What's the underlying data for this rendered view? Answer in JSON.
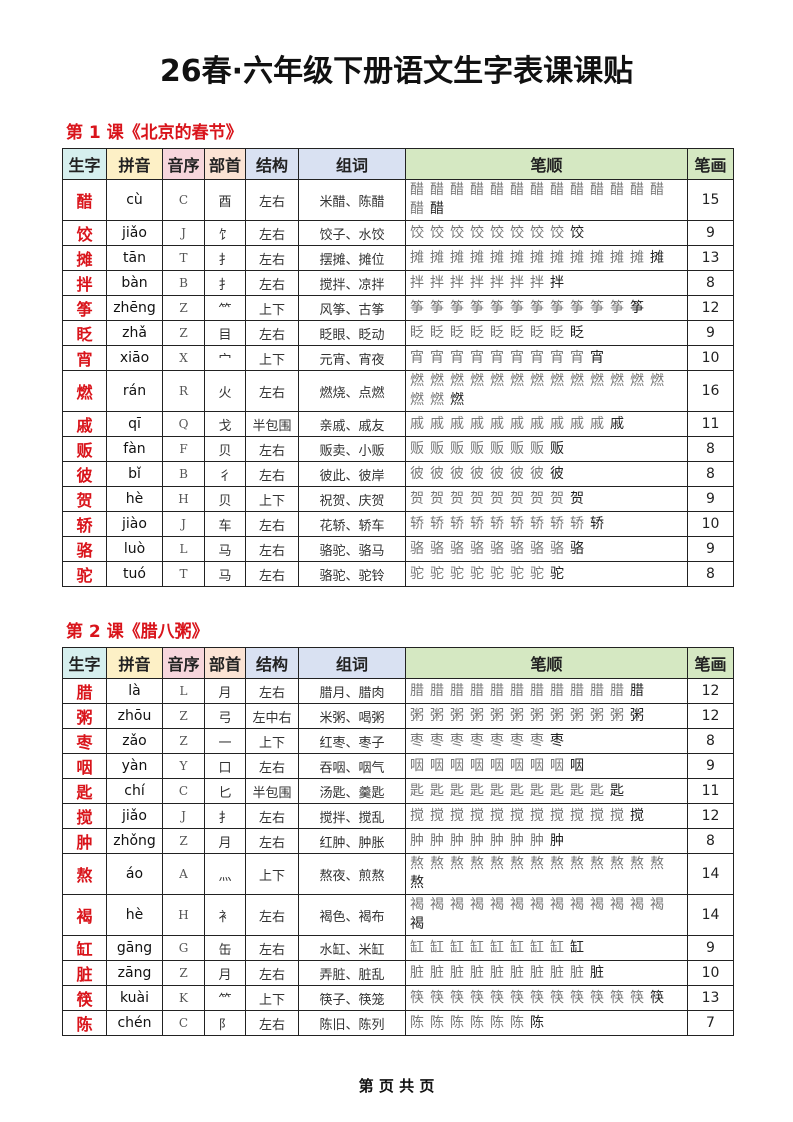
{
  "title": "26春·六年级下册语文生字表课课贴",
  "header_colors": [
    "#d6efee",
    "#fdf0c6",
    "#f7d6dc",
    "#fbe3d4",
    "#d9e1f2",
    "#d9e1f2",
    "#d5e8c2",
    "#d5e8c2"
  ],
  "columns": [
    "生字",
    "拼音",
    "音序",
    "部首",
    "结构",
    "组词",
    "笔顺",
    "笔画"
  ],
  "lessons": [
    {
      "title": "第 1 课《北京的春节》",
      "rows": [
        {
          "char": "醋",
          "pinyin": "cù",
          "seq": "C",
          "radical": "酉",
          "structure": "左右",
          "words": "米醋、陈醋",
          "strokes": 15
        },
        {
          "char": "饺",
          "pinyin": "jiǎo",
          "seq": "J",
          "radical": "饣",
          "structure": "左右",
          "words": "饺子、水饺",
          "strokes": 9
        },
        {
          "char": "摊",
          "pinyin": "tān",
          "seq": "T",
          "radical": "扌",
          "structure": "左右",
          "words": "摆摊、摊位",
          "strokes": 13
        },
        {
          "char": "拌",
          "pinyin": "bàn",
          "seq": "B",
          "radical": "扌",
          "structure": "左右",
          "words": "搅拌、凉拌",
          "strokes": 8
        },
        {
          "char": "筝",
          "pinyin": "zhēng",
          "seq": "Z",
          "radical": "⺮",
          "structure": "上下",
          "words": "风筝、古筝",
          "strokes": 12
        },
        {
          "char": "眨",
          "pinyin": "zhǎ",
          "seq": "Z",
          "radical": "目",
          "structure": "左右",
          "words": "眨眼、眨动",
          "strokes": 9
        },
        {
          "char": "宵",
          "pinyin": "xiāo",
          "seq": "X",
          "radical": "宀",
          "structure": "上下",
          "words": "元宵、宵夜",
          "strokes": 10
        },
        {
          "char": "燃",
          "pinyin": "rán",
          "seq": "R",
          "radical": "火",
          "structure": "左右",
          "words": "燃烧、点燃",
          "strokes": 16
        },
        {
          "char": "戚",
          "pinyin": "qī",
          "seq": "Q",
          "radical": "戈",
          "structure": "半包围",
          "words": "亲戚、戚友",
          "strokes": 11
        },
        {
          "char": "贩",
          "pinyin": "fàn",
          "seq": "F",
          "radical": "贝",
          "structure": "左右",
          "words": "贩卖、小贩",
          "strokes": 8
        },
        {
          "char": "彼",
          "pinyin": "bǐ",
          "seq": "B",
          "radical": "彳",
          "structure": "左右",
          "words": "彼此、彼岸",
          "strokes": 8
        },
        {
          "char": "贺",
          "pinyin": "hè",
          "seq": "H",
          "radical": "贝",
          "structure": "上下",
          "words": "祝贺、庆贺",
          "strokes": 9
        },
        {
          "char": "轿",
          "pinyin": "jiào",
          "seq": "J",
          "radical": "车",
          "structure": "左右",
          "words": "花轿、轿车",
          "strokes": 10
        },
        {
          "char": "骆",
          "pinyin": "luò",
          "seq": "L",
          "radical": "马",
          "structure": "左右",
          "words": "骆驼、骆马",
          "strokes": 9
        },
        {
          "char": "驼",
          "pinyin": "tuó",
          "seq": "T",
          "radical": "马",
          "structure": "左右",
          "words": "骆驼、驼铃",
          "strokes": 8
        }
      ]
    },
    {
      "title": "第 2 课《腊八粥》",
      "rows": [
        {
          "char": "腊",
          "pinyin": "là",
          "seq": "L",
          "radical": "月",
          "structure": "左右",
          "words": "腊月、腊肉",
          "strokes": 12
        },
        {
          "char": "粥",
          "pinyin": "zhōu",
          "seq": "Z",
          "radical": "弓",
          "structure": "左中右",
          "words": "米粥、喝粥",
          "strokes": 12
        },
        {
          "char": "枣",
          "pinyin": "zǎo",
          "seq": "Z",
          "radical": "一",
          "structure": "上下",
          "words": "红枣、枣子",
          "strokes": 8
        },
        {
          "char": "咽",
          "pinyin": "yàn",
          "seq": "Y",
          "radical": "口",
          "structure": "左右",
          "words": "吞咽、咽气",
          "strokes": 9
        },
        {
          "char": "匙",
          "pinyin": "chí",
          "seq": "C",
          "radical": "匕",
          "structure": "半包围",
          "words": "汤匙、羹匙",
          "strokes": 11
        },
        {
          "char": "搅",
          "pinyin": "jiǎo",
          "seq": "J",
          "radical": "扌",
          "structure": "左右",
          "words": "搅拌、搅乱",
          "strokes": 12
        },
        {
          "char": "肿",
          "pinyin": "zhǒng",
          "seq": "Z",
          "radical": "月",
          "structure": "左右",
          "words": "红肿、肿胀",
          "strokes": 8
        },
        {
          "char": "熬",
          "pinyin": "áo",
          "seq": "A",
          "radical": "灬",
          "structure": "上下",
          "words": "熬夜、煎熬",
          "strokes": 14
        },
        {
          "char": "褐",
          "pinyin": "hè",
          "seq": "H",
          "radical": "衤",
          "structure": "左右",
          "words": "褐色、褐布",
          "strokes": 14
        },
        {
          "char": "缸",
          "pinyin": "gāng",
          "seq": "G",
          "radical": "缶",
          "structure": "左右",
          "words": "水缸、米缸",
          "strokes": 9
        },
        {
          "char": "脏",
          "pinyin": "zāng",
          "seq": "Z",
          "radical": "月",
          "structure": "左右",
          "words": "弄脏、脏乱",
          "strokes": 10
        },
        {
          "char": "筷",
          "pinyin": "kuài",
          "seq": "K",
          "radical": "⺮",
          "structure": "上下",
          "words": "筷子、筷笼",
          "strokes": 13
        },
        {
          "char": "陈",
          "pinyin": "chén",
          "seq": "C",
          "radical": "阝",
          "structure": "左右",
          "words": "陈旧、陈列",
          "strokes": 7
        }
      ]
    }
  ],
  "footer": "第 页 共 页"
}
